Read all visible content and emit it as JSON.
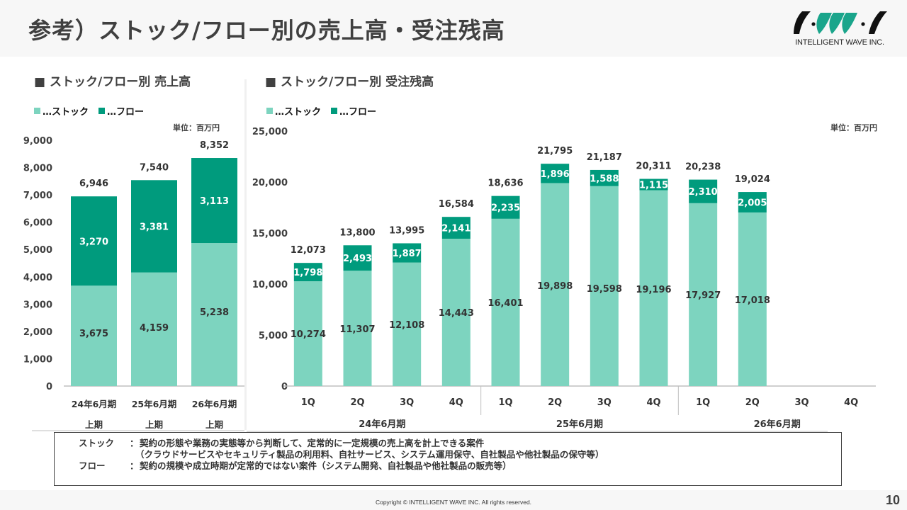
{
  "header": {
    "title": "参考）ストック/フロー別の売上高・受注残高",
    "logo_text": "INTELLIGENT WAVE INC.",
    "logo_icon": "iwi-logo-icon"
  },
  "colors": {
    "stock": "#7dd4bf",
    "flow": "#009b7d",
    "axis": "#bfbfbf",
    "text": "#404040",
    "logo_green": "#1aa58b",
    "logo_black": "#111111"
  },
  "legend": {
    "stock": "…ストック",
    "flow": "…フロー"
  },
  "unit_label": "単位：百万円",
  "chart_data": [
    {
      "type": "bar",
      "stacked": true,
      "title": "■ ストック/フロー別 売上高",
      "categories": [
        "24年6月期\n上期",
        "25年6月期\n上期",
        "26年6月期\n上期"
      ],
      "category_lines": [
        [
          "24年6月期",
          "上期"
        ],
        [
          "25年6月期",
          "上期"
        ],
        [
          "26年6月期",
          "上期"
        ]
      ],
      "series": [
        {
          "name": "ストック",
          "values": [
            3675,
            4159,
            5238
          ]
        },
        {
          "name": "フロー",
          "values": [
            3270,
            3381,
            3113
          ]
        }
      ],
      "totals": [
        6946,
        7540,
        8352
      ],
      "total_labels": [
        "6,946",
        "7,540",
        "8,352"
      ],
      "stock_labels": [
        "3,675",
        "4,159",
        "5,238"
      ],
      "flow_labels": [
        "3,270",
        "3,381",
        "3,113"
      ],
      "ylim": [
        0,
        9000
      ],
      "yticks": [
        0,
        1000,
        2000,
        3000,
        4000,
        5000,
        6000,
        7000,
        8000,
        9000
      ],
      "ytick_labels": [
        "0",
        "1,000",
        "2,000",
        "3,000",
        "4,000",
        "5,000",
        "6,000",
        "7,000",
        "8,000",
        "9,000"
      ],
      "xlabel": "",
      "ylabel": "",
      "unit": "単位：百万円",
      "grid": false,
      "legend_position": "top-left"
    },
    {
      "type": "bar",
      "stacked": true,
      "title": "■ ストック/フロー別 受注残高",
      "categories": [
        "1Q",
        "2Q",
        "3Q",
        "4Q",
        "1Q",
        "2Q",
        "3Q",
        "4Q",
        "1Q",
        "2Q",
        "3Q",
        "4Q"
      ],
      "groups": [
        {
          "label": "24年6月期",
          "count": 4
        },
        {
          "label": "25年6月期",
          "count": 4
        },
        {
          "label": "26年6月期",
          "count": 4
        }
      ],
      "series": [
        {
          "name": "ストック",
          "values": [
            10274,
            11307,
            12108,
            14443,
            16401,
            19898,
            19598,
            19196,
            17927,
            17018,
            null,
            null
          ]
        },
        {
          "name": "フロー",
          "values": [
            1798,
            2493,
            1887,
            2141,
            2235,
            1896,
            1588,
            1115,
            2310,
            2005,
            null,
            null
          ]
        }
      ],
      "totals": [
        12073,
        13800,
        13995,
        16584,
        18636,
        21795,
        21187,
        20311,
        20238,
        19024,
        null,
        null
      ],
      "total_labels": [
        "12,073",
        "13,800",
        "13,995",
        "16,584",
        "18,636",
        "21,795",
        "21,187",
        "20,311",
        "20,238",
        "19,024",
        "",
        ""
      ],
      "stock_labels": [
        "10,274",
        "11,307",
        "12,108",
        "14,443",
        "16,401",
        "19,898",
        "19,598",
        "19,196",
        "17,927",
        "17,018",
        "",
        ""
      ],
      "flow_labels": [
        "1,798",
        "2,493",
        "1,887",
        "2,141",
        "2,235",
        "1,896",
        "1,588",
        "1,115",
        "2,310",
        "2,005",
        "",
        ""
      ],
      "ylim": [
        0,
        25000
      ],
      "yticks": [
        0,
        5000,
        10000,
        15000,
        20000,
        25000
      ],
      "ytick_labels": [
        "0",
        "5,000",
        "10,000",
        "15,000",
        "20,000",
        "25,000"
      ],
      "xlabel": "",
      "ylabel": "",
      "unit": "単位：百万円",
      "grid": false,
      "legend_position": "top-left"
    }
  ],
  "definitions": {
    "stock_term": "ストック",
    "stock_desc_1": "契約の形態や業務の実態等から判断して、定常的に一定規模の売上高を計上できる案件",
    "stock_desc_2": "（クラウドサービスやセキュリティ製品の利用料、自社サービス、システム運用保守、自社製品や他社製品の保守等）",
    "flow_term": "フロー",
    "flow_desc": "契約の規模や成立時期が定常的ではない案件（システム開発、自社製品や他社製品の販売等）",
    "separator": "："
  },
  "footer": {
    "copyright": "Copyright © INTELLIGENT WAVE INC. All rights reserved.",
    "page_number": "10"
  }
}
